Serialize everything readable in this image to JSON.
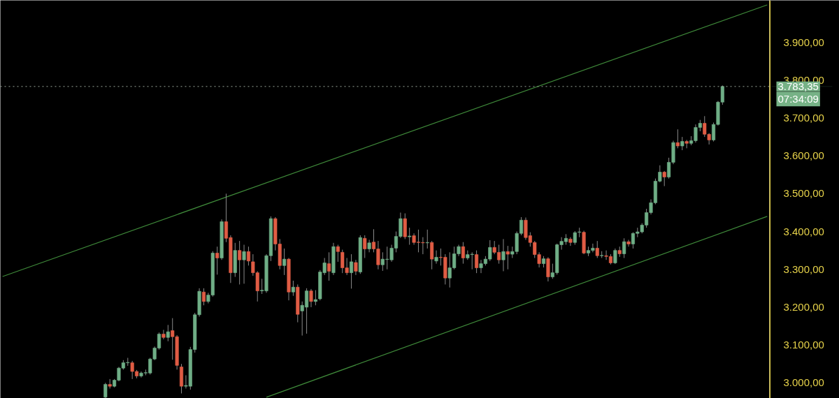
{
  "chart_data": {
    "type": "candlestick",
    "categories": [
      null,
      null,
      null,
      null,
      null,
      null,
      null,
      null,
      null,
      null,
      null,
      null,
      null,
      null,
      null,
      null,
      null,
      null,
      null,
      null,
      null,
      null,
      null,
      null,
      null,
      null,
      null,
      null,
      null,
      null,
      null,
      null,
      null,
      null,
      null,
      null,
      null,
      null,
      null,
      null,
      null,
      null,
      null,
      null,
      null,
      null,
      null,
      null,
      null,
      null,
      null,
      null,
      null,
      null,
      null,
      null,
      null,
      null,
      null,
      null,
      null,
      null,
      null,
      null,
      null,
      null,
      null,
      null,
      null,
      null,
      null,
      null,
      null,
      null,
      null,
      null,
      null,
      null,
      null,
      null,
      null,
      null,
      null,
      null,
      null,
      null,
      null,
      null,
      null,
      null,
      null,
      null,
      null,
      null,
      null,
      null,
      null,
      null,
      null,
      null,
      null,
      null,
      null,
      null,
      null,
      null,
      null,
      null,
      null,
      null,
      null,
      null,
      null,
      null,
      null,
      null,
      null,
      null,
      null,
      null,
      null,
      null,
      null,
      null,
      null,
      null,
      null,
      null,
      null,
      null,
      null,
      null,
      null,
      null,
      null,
      null,
      null,
      null,
      null,
      null,
      null,
      null,
      null,
      null,
      null,
      null,
      null,
      null,
      null,
      null,
      null,
      null,
      null,
      null,
      null,
      null,
      null,
      null,
      null,
      null,
      null,
      null,
      null,
      null,
      null,
      null,
      null,
      null,
      null,
      null,
      null,
      null
    ],
    "ohlc": [
      null,
      null,
      null,
      null,
      null,
      null,
      null,
      null,
      null,
      null,
      null,
      null,
      null,
      null,
      null,
      null,
      null,
      null,
      null,
      null,
      null,
      null,
      null,
      [
        2962,
        3000,
        2960,
        2996
      ],
      [
        2996,
        3010,
        2985,
        2991
      ],
      [
        2991,
        3010,
        2988,
        3007
      ],
      [
        3007,
        3042,
        3004,
        3039
      ],
      [
        3039,
        3060,
        3035,
        3053
      ],
      [
        3053,
        3066,
        3045,
        3054
      ],
      [
        3053,
        3058,
        3010,
        3030
      ],
      [
        3030,
        3034,
        3012,
        3018
      ],
      [
        3018,
        3030,
        3014,
        3026
      ],
      [
        3026,
        3035,
        3020,
        3027
      ],
      [
        3026,
        3066,
        3022,
        3063
      ],
      [
        3063,
        3096,
        3060,
        3092
      ],
      [
        3092,
        3133,
        3088,
        3129
      ],
      [
        3129,
        3140,
        3115,
        3120
      ],
      [
        3120,
        3153,
        3110,
        3135
      ],
      [
        3138,
        3171,
        3061,
        3122
      ],
      [
        3122,
        3126,
        3035,
        3046
      ],
      [
        3042,
        3050,
        2972,
        2991
      ],
      [
        2991,
        3020,
        2985,
        2993
      ],
      [
        2991,
        3095,
        2982,
        3088
      ],
      [
        3088,
        3185,
        3080,
        3180
      ],
      [
        3180,
        3250,
        3175,
        3242
      ],
      [
        3240,
        3250,
        3205,
        3215
      ],
      [
        3215,
        3238,
        3210,
        3232
      ],
      [
        3232,
        3348,
        3228,
        3343
      ],
      [
        3343,
        3360,
        3286,
        3330
      ],
      [
        3330,
        3432,
        3325,
        3426
      ],
      [
        3426,
        3500,
        3372,
        3382
      ],
      [
        3384,
        3390,
        3264,
        3291
      ],
      [
        3291,
        3370,
        3280,
        3350
      ],
      [
        3350,
        3375,
        3260,
        3325
      ],
      [
        3325,
        3365,
        3262,
        3347
      ],
      [
        3347,
        3360,
        3310,
        3322
      ],
      [
        3320,
        3340,
        3283,
        3291
      ],
      [
        3291,
        3295,
        3215,
        3243
      ],
      [
        3243,
        3275,
        3235,
        3245
      ],
      [
        3243,
        3340,
        3238,
        3336
      ],
      [
        3336,
        3440,
        3322,
        3434
      ],
      [
        3434,
        3438,
        3350,
        3367
      ],
      [
        3367,
        3380,
        3300,
        3310
      ],
      [
        3310,
        3355,
        3285,
        3327
      ],
      [
        3327,
        3330,
        3218,
        3240
      ],
      [
        3240,
        3270,
        3230,
        3253
      ],
      [
        3253,
        3260,
        3160,
        3181
      ],
      [
        3190,
        3215,
        3125,
        3205
      ],
      [
        3200,
        3250,
        3130,
        3243
      ],
      [
        3243,
        3248,
        3200,
        3215
      ],
      [
        3215,
        3245,
        3205,
        3220
      ],
      [
        3222,
        3298,
        3218,
        3293
      ],
      [
        3291,
        3330,
        3285,
        3317
      ],
      [
        3315,
        3345,
        3270,
        3295
      ],
      [
        3291,
        3370,
        3285,
        3360
      ],
      [
        3360,
        3365,
        3320,
        3347
      ],
      [
        3345,
        3352,
        3290,
        3304
      ],
      [
        3304,
        3330,
        3285,
        3291
      ],
      [
        3291,
        3340,
        3249,
        3320
      ],
      [
        3318,
        3325,
        3285,
        3295
      ],
      [
        3293,
        3390,
        3288,
        3384
      ],
      [
        3382,
        3390,
        3330,
        3354
      ],
      [
        3354,
        3378,
        3345,
        3370
      ],
      [
        3372,
        3406,
        3345,
        3354
      ],
      [
        3354,
        3375,
        3300,
        3312
      ],
      [
        3312,
        3345,
        3296,
        3327
      ],
      [
        3326,
        3360,
        3300,
        3327
      ],
      [
        3325,
        3365,
        3320,
        3356
      ],
      [
        3356,
        3400,
        3345,
        3387
      ],
      [
        3387,
        3450,
        3383,
        3434
      ],
      [
        3434,
        3448,
        3380,
        3386
      ],
      [
        3386,
        3410,
        3365,
        3388
      ],
      [
        3389,
        3395,
        3365,
        3371
      ],
      [
        3372,
        3405,
        3345,
        3371
      ],
      [
        3371,
        3385,
        3340,
        3370
      ],
      [
        3370,
        3405,
        3355,
        3371
      ],
      [
        3371,
        3375,
        3300,
        3327
      ],
      [
        3322,
        3350,
        3315,
        3332
      ],
      [
        3332,
        3355,
        3310,
        3331
      ],
      [
        3332,
        3340,
        3260,
        3277
      ],
      [
        3277,
        3345,
        3252,
        3304
      ],
      [
        3304,
        3360,
        3300,
        3341
      ],
      [
        3341,
        3365,
        3335,
        3360
      ],
      [
        3360,
        3372,
        3315,
        3330
      ],
      [
        3330,
        3350,
        3325,
        3339
      ],
      [
        3339,
        3345,
        3300,
        3340
      ],
      [
        3339,
        3350,
        3290,
        3304
      ],
      [
        3304,
        3325,
        3290,
        3315
      ],
      [
        3315,
        3335,
        3310,
        3327
      ],
      [
        3327,
        3377,
        3322,
        3358
      ],
      [
        3358,
        3375,
        3340,
        3345
      ],
      [
        3345,
        3365,
        3315,
        3325
      ],
      [
        3325,
        3380,
        3295,
        3347
      ],
      [
        3347,
        3362,
        3300,
        3340
      ],
      [
        3340,
        3360,
        3330,
        3347
      ],
      [
        3347,
        3400,
        3340,
        3395
      ],
      [
        3395,
        3438,
        3390,
        3430
      ],
      [
        3430,
        3437,
        3378,
        3384
      ],
      [
        3389,
        3398,
        3360,
        3371
      ],
      [
        3371,
        3375,
        3330,
        3339
      ],
      [
        3339,
        3345,
        3305,
        3315
      ],
      [
        3315,
        3335,
        3305,
        3328
      ],
      [
        3328,
        3332,
        3268,
        3280
      ],
      [
        3280,
        3315,
        3275,
        3291
      ],
      [
        3291,
        3368,
        3286,
        3365
      ],
      [
        3365,
        3385,
        3352,
        3374
      ],
      [
        3373,
        3393,
        3365,
        3382
      ],
      [
        3380,
        3385,
        3362,
        3371
      ],
      [
        3371,
        3401,
        3365,
        3397
      ],
      [
        3398,
        3410,
        3385,
        3399
      ],
      [
        3398,
        3402,
        3340,
        3343
      ],
      [
        3343,
        3360,
        3335,
        3350
      ],
      [
        3350,
        3368,
        3345,
        3356
      ],
      [
        3356,
        3375,
        3330,
        3336
      ],
      [
        3336,
        3348,
        3330,
        3337
      ],
      [
        3336,
        3350,
        3325,
        3334
      ],
      [
        3334,
        3340,
        3313,
        3317
      ],
      [
        3317,
        3355,
        3314,
        3350
      ],
      [
        3350,
        3360,
        3333,
        3341
      ],
      [
        3341,
        3382,
        3330,
        3373
      ],
      [
        3373,
        3378,
        3360,
        3367
      ],
      [
        3367,
        3398,
        3355,
        3395
      ],
      [
        3395,
        3410,
        3385,
        3399
      ],
      [
        3399,
        3422,
        3395,
        3417
      ],
      [
        3417,
        3460,
        3410,
        3450
      ],
      [
        3450,
        3485,
        3445,
        3476
      ],
      [
        3476,
        3540,
        3472,
        3533
      ],
      [
        3533,
        3575,
        3530,
        3557
      ],
      [
        3557,
        3560,
        3520,
        3544
      ],
      [
        3544,
        3595,
        3540,
        3583
      ],
      [
        3583,
        3640,
        3578,
        3635
      ],
      [
        3635,
        3670,
        3620,
        3626
      ],
      [
        3626,
        3650,
        3615,
        3638
      ],
      [
        3638,
        3642,
        3620,
        3633
      ],
      [
        3633,
        3652,
        3628,
        3640
      ],
      [
        3640,
        3683,
        3635,
        3675
      ],
      [
        3675,
        3695,
        3665,
        3686
      ],
      [
        3686,
        3705,
        3650,
        3657
      ],
      [
        3657,
        3660,
        3630,
        3642
      ],
      [
        3642,
        3688,
        3638,
        3683
      ],
      [
        3683,
        3745,
        3680,
        3742
      ],
      [
        3742,
        3786,
        3735,
        3783.35
      ],
      null,
      null,
      null,
      null,
      null,
      null,
      null,
      null,
      null,
      null
    ],
    "colors": [
      null,
      null,
      null,
      null,
      null,
      null,
      null,
      null,
      null,
      null,
      null,
      null,
      null,
      null,
      null,
      null,
      null,
      null,
      null,
      null,
      null,
      null,
      null,
      "#6fae86",
      "#e05c44",
      "#6fae86",
      "#6fae86",
      "#6fae86",
      "#6fae86",
      "#e05c44",
      "#e05c44",
      "#6fae86",
      "#6fae86",
      "#6fae86",
      "#6fae86",
      "#6fae86",
      "#e05c44",
      "#6fae86",
      "#e05c44",
      "#e05c44",
      "#e05c44",
      "#6fae86",
      "#6fae86",
      "#6fae86",
      "#6fae86",
      "#e05c44",
      "#6fae86",
      "#6fae86",
      "#e05c44",
      "#6fae86",
      "#e05c44",
      "#e05c44",
      "#6fae86",
      "#e05c44",
      "#6fae86",
      "#e05c44",
      "#e05c44",
      "#e05c44",
      "#6fae86",
      "#6fae86",
      "#6fae86",
      "#e05c44",
      "#e05c44",
      "#6fae86",
      "#e05c44",
      "#6fae86",
      "#e05c44",
      "#6fae86",
      "#6fae86",
      "#e05c44",
      "#6fae86",
      "#6fae86",
      "#6fae86",
      "#e05c44",
      "#6fae86",
      "#e05c44",
      "#e05c44",
      "#e05c44",
      "#6fae86",
      "#e05c44",
      "#6fae86",
      "#e05c44",
      "#6fae86",
      "#e05c44",
      "#e05c44",
      "#6fae86",
      "#6fae86",
      "#6fae86",
      "#6fae86",
      "#6fae86",
      "#e05c44",
      "#6fae86",
      "#e05c44",
      "#e05c44",
      "#e05c44",
      "#6fae86",
      "#e05c44",
      "#6fae86",
      "#e05c44",
      "#e05c44",
      "#6fae86",
      "#6fae86",
      "#6fae86",
      "#e05c44",
      "#6fae86",
      "#6fae86",
      "#e05c44",
      "#6fae86",
      "#6fae86",
      "#6fae86",
      "#e05c44",
      "#e05c44",
      "#6fae86",
      "#e05c44",
      "#6fae86",
      "#6fae86",
      "#6fae86",
      "#e05c44",
      "#e05c44",
      "#e05c44",
      "#e05c44",
      "#6fae86",
      "#e05c44",
      "#6fae86",
      "#6fae86",
      "#6fae86",
      "#6fae86",
      "#e05c44",
      "#6fae86",
      "#6fae86",
      "#e05c44",
      "#6fae86",
      "#6fae86",
      "#e05c44",
      "#6fae86",
      "#e05c44",
      "#e05c44",
      "#6fae86",
      "#e05c44",
      "#6fae86",
      "#e05c44",
      "#6fae86",
      "#6fae86",
      "#6fae86",
      "#6fae86",
      "#6fae86",
      "#6fae86",
      "#6fae86",
      "#e05c44",
      "#6fae86",
      "#6fae86",
      "#e05c44",
      "#6fae86",
      "#e05c44",
      "#6fae86",
      "#6fae86",
      "#6fae86",
      "#e05c44",
      "#e05c44",
      "#6fae86",
      "#6fae86",
      "#6fae86",
      null,
      null,
      null,
      null,
      null,
      null,
      null,
      null,
      null,
      null
    ],
    "series": [
      {
        "type": "line",
        "color": "#3f8a3a",
        "values": [
          3281,
          null,
          null,
          null,
          null,
          null,
          null,
          null,
          null,
          null,
          null,
          null,
          null,
          null,
          null,
          null,
          null,
          null,
          null,
          null,
          null,
          null,
          null,
          null,
          null,
          null,
          null,
          null,
          null,
          null,
          null,
          null,
          null,
          null,
          null,
          null,
          null,
          null,
          null,
          null,
          null,
          null,
          null,
          null,
          null,
          null,
          null,
          null,
          null,
          null,
          null,
          null,
          null,
          null,
          null,
          null,
          null,
          null,
          null,
          null,
          null,
          null,
          null,
          null,
          null,
          null,
          null,
          null,
          null,
          null,
          null,
          null,
          null,
          null,
          null,
          null,
          null,
          null,
          null,
          null,
          null,
          null,
          null,
          null,
          null,
          null,
          null,
          null,
          null,
          null,
          null,
          null,
          null,
          null,
          null,
          null,
          null,
          null,
          null,
          null,
          null,
          null,
          null,
          null,
          null,
          null,
          null,
          null,
          null,
          null,
          null,
          null,
          null,
          null,
          null,
          null,
          null,
          null,
          null,
          null,
          null,
          null,
          null,
          null,
          null,
          null,
          null,
          null,
          null,
          null,
          null,
          null,
          null,
          null,
          null,
          null,
          null,
          null,
          null,
          null,
          null,
          null,
          null,
          null,
          null,
          null,
          null,
          null,
          null,
          null,
          null,
          null,
          null,
          null,
          null,
          null,
          null,
          null,
          null,
          null,
          null,
          null,
          null,
          null,
          null,
          null,
          null,
          null,
          null,
          null,
          null,
          3999
        ]
      },
      {
        "type": "line",
        "color": "#3f8a3a",
        "values": [
          null,
          null,
          null,
          null,
          null,
          null,
          null,
          null,
          null,
          null,
          null,
          null,
          null,
          null,
          null,
          null,
          null,
          null,
          null,
          null,
          null,
          null,
          null,
          null,
          null,
          null,
          null,
          null,
          null,
          null,
          null,
          null,
          null,
          null,
          null,
          null,
          null,
          null,
          null,
          null,
          null,
          null,
          null,
          null,
          null,
          null,
          null,
          null,
          null,
          null,
          null,
          null,
          null,
          null,
          null,
          null,
          null,
          null,
          null,
          2962,
          null,
          null,
          null,
          null,
          null,
          null,
          null,
          null,
          null,
          null,
          null,
          null,
          null,
          null,
          null,
          null,
          null,
          null,
          null,
          null,
          null,
          null,
          null,
          null,
          null,
          null,
          null,
          null,
          null,
          null,
          null,
          null,
          null,
          null,
          null,
          null,
          null,
          null,
          null,
          null,
          null,
          null,
          null,
          null,
          null,
          null,
          null,
          null,
          null,
          null,
          null,
          null,
          null,
          null,
          null,
          null,
          null,
          null,
          null,
          null,
          null,
          null,
          null,
          null,
          null,
          null,
          null,
          null,
          null,
          null,
          null,
          null,
          null,
          null,
          null,
          null,
          null,
          null,
          null,
          null,
          null,
          null,
          null,
          null,
          null,
          null,
          null,
          null,
          null,
          null,
          null,
          null,
          null,
          null,
          null,
          null,
          null,
          null,
          null,
          null,
          null,
          null,
          null,
          null,
          null,
          null,
          null,
          null,
          null,
          null,
          null,
          3440
        ]
      }
    ],
    "ylim": [
      2959,
      4011
    ],
    "yticks": [
      {
        "value": 3000,
        "label": "3.000,00"
      },
      {
        "value": 3100,
        "label": "3.100,00"
      },
      {
        "value": 3200,
        "label": "3.200,00"
      },
      {
        "value": 3300,
        "label": "3.300,00"
      },
      {
        "value": 3400,
        "label": "3.400,00"
      },
      {
        "value": 3500,
        "label": "3.500,00"
      },
      {
        "value": 3600,
        "label": "3.600,00"
      },
      {
        "value": 3700,
        "label": "3.700,00"
      },
      {
        "value": 3800,
        "label": "3.800,00"
      },
      {
        "value": 3900,
        "label": "3.900,00"
      }
    ],
    "ref_lines": [
      {
        "axis": "y",
        "value": 3783.35,
        "label": "3.783,35",
        "color": "#9aa59a",
        "line_style": "dotted"
      }
    ],
    "annotations": [
      "07:34:09"
    ],
    "tick_labels": "y",
    "grid": false
  }
}
